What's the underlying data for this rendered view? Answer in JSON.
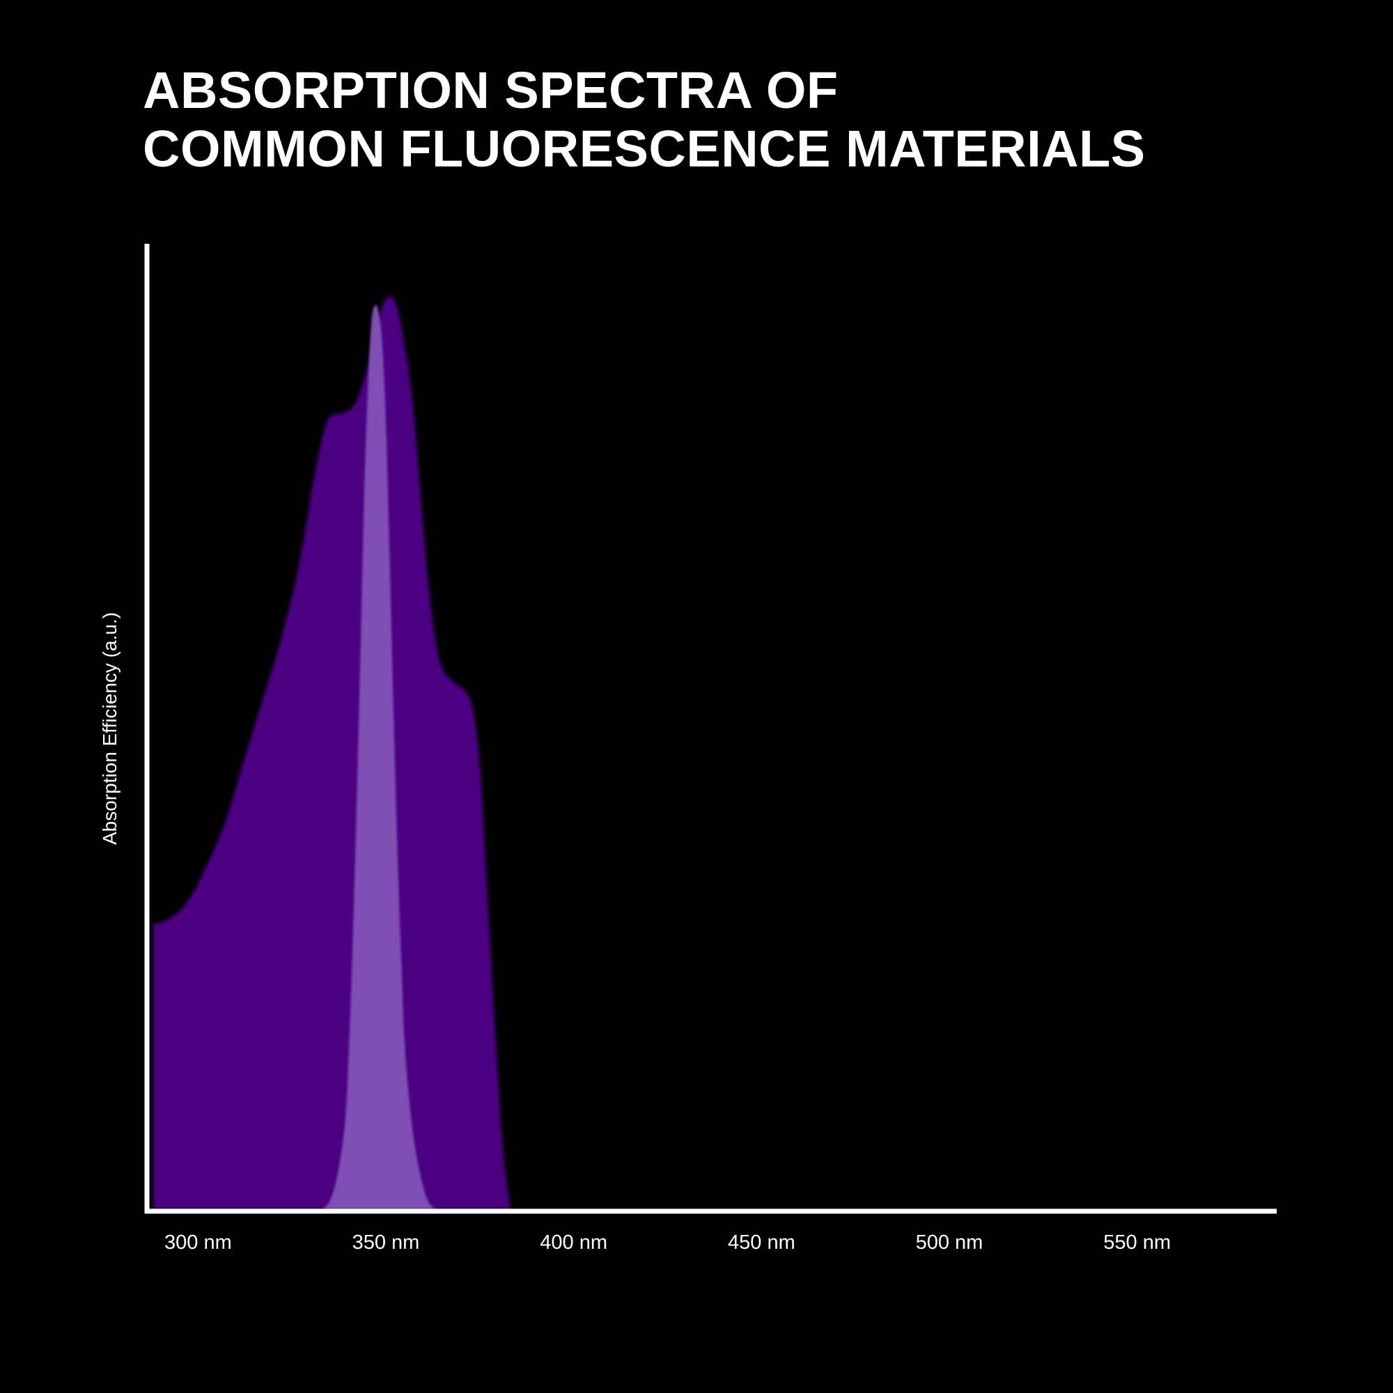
{
  "chart_data": {
    "type": "area",
    "title_lines": [
      "ABSORPTION SPECTRA OF",
      "COMMON FLUORESCENCE MATERIALS"
    ],
    "xlabel": "",
    "ylabel": "Absorption Efficiency (a.u.)",
    "x_unit": "nm",
    "xlim": [
      295,
      595
    ],
    "ylim": [
      0,
      1.1
    ],
    "x_ticks": [
      {
        "value": 300,
        "label": "300 nm"
      },
      {
        "value": 350,
        "label": "350 nm"
      },
      {
        "value": 400,
        "label": "400 nm"
      },
      {
        "value": 450,
        "label": "450 nm"
      },
      {
        "value": 500,
        "label": "500 nm"
      },
      {
        "value": 550,
        "label": "550 nm"
      }
    ],
    "grid": false,
    "legend": "none",
    "series": [
      {
        "color": "#4b0082",
        "points": [
          [
            296,
            0.325
          ],
          [
            300,
            0.33
          ],
          [
            305,
            0.35
          ],
          [
            310,
            0.39
          ],
          [
            315,
            0.44
          ],
          [
            320,
            0.51
          ],
          [
            325,
            0.58
          ],
          [
            330,
            0.65
          ],
          [
            335,
            0.74
          ],
          [
            339,
            0.84
          ],
          [
            342,
            0.895
          ],
          [
            344,
            0.905
          ],
          [
            347,
            0.908
          ],
          [
            350,
            0.92
          ],
          [
            353,
            0.96
          ],
          [
            355,
            1.0
          ],
          [
            357,
            1.03
          ],
          [
            359,
            1.04
          ],
          [
            361,
            1.025
          ],
          [
            363,
            0.98
          ],
          [
            365,
            0.92
          ],
          [
            367,
            0.82
          ],
          [
            369,
            0.72
          ],
          [
            371,
            0.65
          ],
          [
            373,
            0.615
          ],
          [
            376,
            0.6
          ],
          [
            379,
            0.59
          ],
          [
            381,
            0.57
          ],
          [
            383,
            0.5
          ],
          [
            385,
            0.35
          ],
          [
            387,
            0.2
          ],
          [
            389,
            0.07
          ],
          [
            391,
            0.0
          ]
        ]
      },
      {
        "color": "#7f4fb3",
        "points": [
          [
            341,
            0.0
          ],
          [
            343,
            0.01
          ],
          [
            345,
            0.04
          ],
          [
            347,
            0.1
          ],
          [
            348,
            0.18
          ],
          [
            349,
            0.3
          ],
          [
            350,
            0.45
          ],
          [
            351,
            0.62
          ],
          [
            352,
            0.8
          ],
          [
            353,
            0.93
          ],
          [
            354,
            1.01
          ],
          [
            355,
            1.03
          ],
          [
            356,
            1.02
          ],
          [
            357,
            0.98
          ],
          [
            358,
            0.88
          ],
          [
            359,
            0.72
          ],
          [
            360,
            0.55
          ],
          [
            361,
            0.4
          ],
          [
            362,
            0.28
          ],
          [
            363,
            0.18
          ],
          [
            365,
            0.09
          ],
          [
            367,
            0.04
          ],
          [
            369,
            0.01
          ],
          [
            371,
            0.0
          ]
        ]
      }
    ]
  }
}
